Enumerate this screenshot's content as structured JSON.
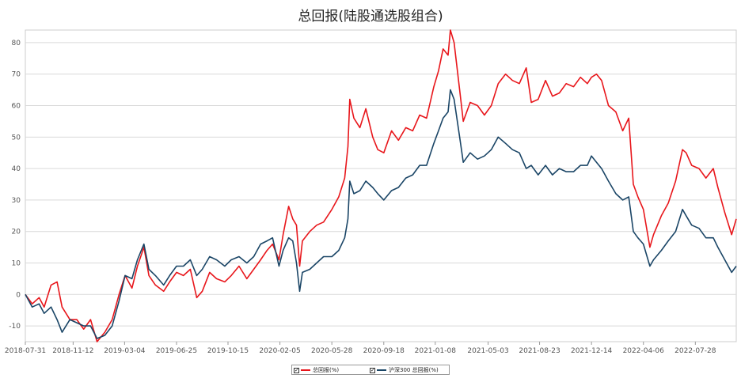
{
  "chart_data": {
    "type": "line",
    "title": "总回报(陆股通选股组合)",
    "ylim": [
      -15,
      84
    ],
    "yticks": [
      -10,
      0,
      10,
      20,
      30,
      40,
      50,
      60,
      70,
      80
    ],
    "xticks": [
      "2018-07-31",
      "2018-11-12",
      "2019-03-04",
      "2019-06-25",
      "2019-10-15",
      "2020-02-05",
      "2020-05-28",
      "2020-09-18",
      "2021-01-08",
      "2021-05-03",
      "2021-08-23",
      "2021-12-14",
      "2022-04-06",
      "2022-07-28"
    ],
    "x_range": [
      "2018-07-31",
      "2022-10-25"
    ],
    "grid": "horizontal",
    "legend_position": "bottom-center",
    "series": [
      {
        "name": "总回报(%)",
        "color": "#e8161b",
        "points": [
          [
            "2018-07-31",
            0
          ],
          [
            "2018-08-15",
            -3
          ],
          [
            "2018-08-30",
            -1
          ],
          [
            "2018-09-10",
            -4
          ],
          [
            "2018-09-25",
            3
          ],
          [
            "2018-10-08",
            4
          ],
          [
            "2018-10-19",
            -4
          ],
          [
            "2018-11-05",
            -8
          ],
          [
            "2018-11-20",
            -8
          ],
          [
            "2018-12-05",
            -11
          ],
          [
            "2018-12-20",
            -8
          ],
          [
            "2019-01-03",
            -15
          ],
          [
            "2019-01-20",
            -12
          ],
          [
            "2019-02-05",
            -8
          ],
          [
            "2019-02-20",
            0
          ],
          [
            "2019-03-05",
            6
          ],
          [
            "2019-03-20",
            2
          ],
          [
            "2019-04-01",
            9
          ],
          [
            "2019-04-15",
            15
          ],
          [
            "2019-04-26",
            6
          ],
          [
            "2019-05-10",
            3
          ],
          [
            "2019-05-28",
            1
          ],
          [
            "2019-06-10",
            4
          ],
          [
            "2019-06-25",
            7
          ],
          [
            "2019-07-10",
            6
          ],
          [
            "2019-07-25",
            8
          ],
          [
            "2019-08-08",
            -1
          ],
          [
            "2019-08-20",
            1
          ],
          [
            "2019-09-05",
            7
          ],
          [
            "2019-09-20",
            5
          ],
          [
            "2019-10-08",
            4
          ],
          [
            "2019-10-22",
            6
          ],
          [
            "2019-11-08",
            9
          ],
          [
            "2019-11-25",
            5
          ],
          [
            "2019-12-10",
            8
          ],
          [
            "2019-12-25",
            11
          ],
          [
            "2020-01-08",
            14
          ],
          [
            "2020-01-20",
            16
          ],
          [
            "2020-02-03",
            11
          ],
          [
            "2020-02-12",
            19
          ],
          [
            "2020-02-24",
            28
          ],
          [
            "2020-03-04",
            24
          ],
          [
            "2020-03-12",
            22
          ],
          [
            "2020-03-19",
            9
          ],
          [
            "2020-03-25",
            17
          ],
          [
            "2020-04-10",
            20
          ],
          [
            "2020-04-25",
            22
          ],
          [
            "2020-05-10",
            23
          ],
          [
            "2020-05-28",
            27
          ],
          [
            "2020-06-12",
            31
          ],
          [
            "2020-06-25",
            37
          ],
          [
            "2020-07-02",
            47
          ],
          [
            "2020-07-06",
            62
          ],
          [
            "2020-07-15",
            56
          ],
          [
            "2020-07-28",
            53
          ],
          [
            "2020-08-10",
            59
          ],
          [
            "2020-08-25",
            50
          ],
          [
            "2020-09-05",
            46
          ],
          [
            "2020-09-18",
            45
          ],
          [
            "2020-10-05",
            52
          ],
          [
            "2020-10-20",
            49
          ],
          [
            "2020-11-05",
            53
          ],
          [
            "2020-11-20",
            52
          ],
          [
            "2020-12-05",
            57
          ],
          [
            "2020-12-20",
            56
          ],
          [
            "2021-01-05",
            66
          ],
          [
            "2021-01-15",
            71
          ],
          [
            "2021-01-25",
            78
          ],
          [
            "2021-02-05",
            76
          ],
          [
            "2021-02-10",
            84
          ],
          [
            "2021-02-18",
            80
          ],
          [
            "2021-03-02",
            65
          ],
          [
            "2021-03-10",
            55
          ],
          [
            "2021-03-25",
            61
          ],
          [
            "2021-04-10",
            60
          ],
          [
            "2021-04-25",
            57
          ],
          [
            "2021-05-10",
            60
          ],
          [
            "2021-05-25",
            67
          ],
          [
            "2021-06-10",
            70
          ],
          [
            "2021-06-25",
            68
          ],
          [
            "2021-07-10",
            67
          ],
          [
            "2021-07-25",
            72
          ],
          [
            "2021-08-05",
            61
          ],
          [
            "2021-08-20",
            62
          ],
          [
            "2021-09-05",
            68
          ],
          [
            "2021-09-20",
            63
          ],
          [
            "2021-10-05",
            64
          ],
          [
            "2021-10-20",
            67
          ],
          [
            "2021-11-05",
            66
          ],
          [
            "2021-11-20",
            69
          ],
          [
            "2021-12-05",
            67
          ],
          [
            "2021-12-14",
            69
          ],
          [
            "2021-12-25",
            70
          ],
          [
            "2022-01-05",
            68
          ],
          [
            "2022-01-20",
            60
          ],
          [
            "2022-02-05",
            58
          ],
          [
            "2022-02-20",
            52
          ],
          [
            "2022-03-05",
            56
          ],
          [
            "2022-03-15",
            35
          ],
          [
            "2022-03-25",
            31
          ],
          [
            "2022-04-06",
            27
          ],
          [
            "2022-04-20",
            15
          ],
          [
            "2022-04-28",
            19
          ],
          [
            "2022-05-15",
            25
          ],
          [
            "2022-05-30",
            29
          ],
          [
            "2022-06-15",
            36
          ],
          [
            "2022-06-30",
            46
          ],
          [
            "2022-07-08",
            45
          ],
          [
            "2022-07-20",
            41
          ],
          [
            "2022-08-05",
            40
          ],
          [
            "2022-08-20",
            37
          ],
          [
            "2022-09-05",
            40
          ],
          [
            "2022-09-15",
            34
          ],
          [
            "2022-09-30",
            26
          ],
          [
            "2022-10-15",
            19
          ],
          [
            "2022-10-25",
            24
          ]
        ]
      },
      {
        "name": "沪深300 总回报(%)",
        "color": "#1a4566",
        "points": [
          [
            "2018-07-31",
            0
          ],
          [
            "2018-08-15",
            -4
          ],
          [
            "2018-08-30",
            -3
          ],
          [
            "2018-09-10",
            -6
          ],
          [
            "2018-09-25",
            -4
          ],
          [
            "2018-10-08",
            -8
          ],
          [
            "2018-10-19",
            -12
          ],
          [
            "2018-11-05",
            -8
          ],
          [
            "2018-11-20",
            -9
          ],
          [
            "2018-12-05",
            -10
          ],
          [
            "2018-12-20",
            -10
          ],
          [
            "2019-01-03",
            -14
          ],
          [
            "2019-01-20",
            -13
          ],
          [
            "2019-02-05",
            -10
          ],
          [
            "2019-02-20",
            -2
          ],
          [
            "2019-03-05",
            6
          ],
          [
            "2019-03-20",
            5
          ],
          [
            "2019-04-01",
            11
          ],
          [
            "2019-04-15",
            16
          ],
          [
            "2019-04-26",
            8
          ],
          [
            "2019-05-10",
            6
          ],
          [
            "2019-05-28",
            3
          ],
          [
            "2019-06-10",
            6
          ],
          [
            "2019-06-25",
            9
          ],
          [
            "2019-07-10",
            9
          ],
          [
            "2019-07-25",
            11
          ],
          [
            "2019-08-08",
            6
          ],
          [
            "2019-08-20",
            8
          ],
          [
            "2019-09-05",
            12
          ],
          [
            "2019-09-20",
            11
          ],
          [
            "2019-10-08",
            9
          ],
          [
            "2019-10-22",
            11
          ],
          [
            "2019-11-08",
            12
          ],
          [
            "2019-11-25",
            10
          ],
          [
            "2019-12-10",
            12
          ],
          [
            "2019-12-25",
            16
          ],
          [
            "2020-01-08",
            17
          ],
          [
            "2020-01-20",
            18
          ],
          [
            "2020-02-03",
            9
          ],
          [
            "2020-02-12",
            14
          ],
          [
            "2020-02-24",
            18
          ],
          [
            "2020-03-04",
            17
          ],
          [
            "2020-03-12",
            10
          ],
          [
            "2020-03-19",
            1
          ],
          [
            "2020-03-25",
            7
          ],
          [
            "2020-04-10",
            8
          ],
          [
            "2020-04-25",
            10
          ],
          [
            "2020-05-10",
            12
          ],
          [
            "2020-05-28",
            12
          ],
          [
            "2020-06-12",
            14
          ],
          [
            "2020-06-25",
            18
          ],
          [
            "2020-07-02",
            24
          ],
          [
            "2020-07-06",
            36
          ],
          [
            "2020-07-15",
            32
          ],
          [
            "2020-07-28",
            33
          ],
          [
            "2020-08-10",
            36
          ],
          [
            "2020-08-25",
            34
          ],
          [
            "2020-09-05",
            32
          ],
          [
            "2020-09-18",
            30
          ],
          [
            "2020-10-05",
            33
          ],
          [
            "2020-10-20",
            34
          ],
          [
            "2020-11-05",
            37
          ],
          [
            "2020-11-20",
            38
          ],
          [
            "2020-12-05",
            41
          ],
          [
            "2020-12-20",
            41
          ],
          [
            "2021-01-05",
            48
          ],
          [
            "2021-01-15",
            52
          ],
          [
            "2021-01-25",
            56
          ],
          [
            "2021-02-05",
            58
          ],
          [
            "2021-02-10",
            65
          ],
          [
            "2021-02-18",
            62
          ],
          [
            "2021-03-02",
            50
          ],
          [
            "2021-03-10",
            42
          ],
          [
            "2021-03-25",
            45
          ],
          [
            "2021-04-10",
            43
          ],
          [
            "2021-04-25",
            44
          ],
          [
            "2021-05-10",
            46
          ],
          [
            "2021-05-25",
            50
          ],
          [
            "2021-06-10",
            48
          ],
          [
            "2021-06-25",
            46
          ],
          [
            "2021-07-10",
            45
          ],
          [
            "2021-07-25",
            40
          ],
          [
            "2021-08-05",
            41
          ],
          [
            "2021-08-20",
            38
          ],
          [
            "2021-09-05",
            41
          ],
          [
            "2021-09-20",
            38
          ],
          [
            "2021-10-05",
            40
          ],
          [
            "2021-10-20",
            39
          ],
          [
            "2021-11-05",
            39
          ],
          [
            "2021-11-20",
            41
          ],
          [
            "2021-12-05",
            41
          ],
          [
            "2021-12-14",
            44
          ],
          [
            "2021-12-25",
            42
          ],
          [
            "2022-01-05",
            40
          ],
          [
            "2022-01-20",
            36
          ],
          [
            "2022-02-05",
            32
          ],
          [
            "2022-02-20",
            30
          ],
          [
            "2022-03-05",
            31
          ],
          [
            "2022-03-15",
            20
          ],
          [
            "2022-03-25",
            18
          ],
          [
            "2022-04-06",
            16
          ],
          [
            "2022-04-20",
            9
          ],
          [
            "2022-04-28",
            11
          ],
          [
            "2022-05-15",
            14
          ],
          [
            "2022-05-30",
            17
          ],
          [
            "2022-06-15",
            20
          ],
          [
            "2022-06-30",
            27
          ],
          [
            "2022-07-08",
            25
          ],
          [
            "2022-07-20",
            22
          ],
          [
            "2022-08-05",
            21
          ],
          [
            "2022-08-20",
            18
          ],
          [
            "2022-09-05",
            18
          ],
          [
            "2022-09-15",
            15
          ],
          [
            "2022-09-30",
            11
          ],
          [
            "2022-10-15",
            7
          ],
          [
            "2022-10-25",
            9
          ]
        ]
      }
    ]
  }
}
